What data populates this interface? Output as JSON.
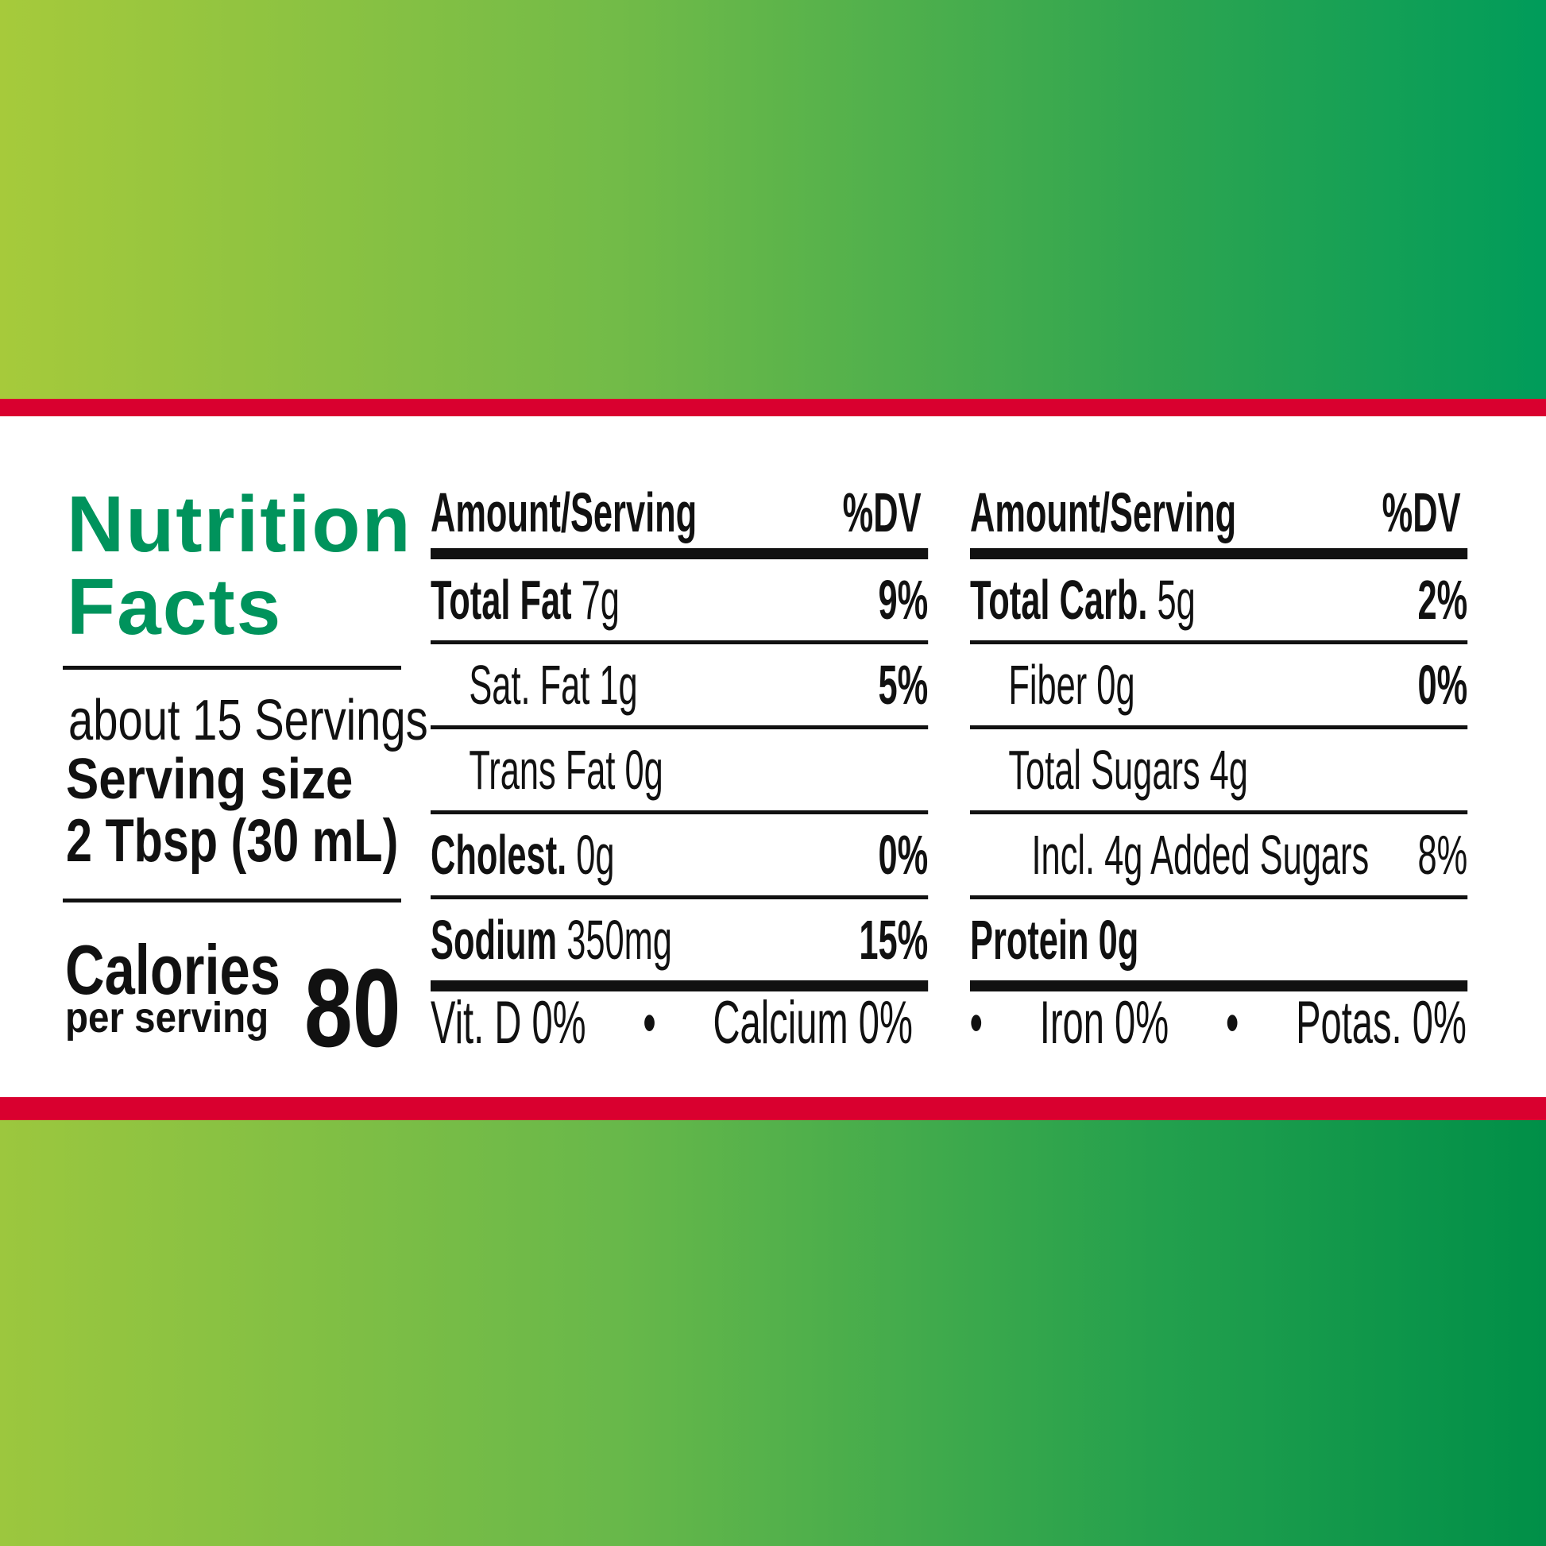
{
  "colors": {
    "brand_green": "#00935c",
    "band_red": "#d9002f"
  },
  "label": {
    "title_line1": "Nutrition",
    "title_line2": "Facts",
    "servings": "about 15 Servings",
    "serving_size_label": "Serving size",
    "serving_size_value": "2 Tbsp (30 mL)",
    "calories_label": "Calories",
    "calories_sub": "per serving",
    "calories_value": "80"
  },
  "columns": [
    {
      "header_amount": "Amount/Serving",
      "header_dv": "%DV",
      "rows": [
        {
          "name": "Total Fat",
          "amount": "7g",
          "dv": "9%",
          "bold": true
        },
        {
          "name": "Sat. Fat",
          "amount": "1g",
          "dv": "5%",
          "indent": 1
        },
        {
          "name": "Trans Fat",
          "amount": "0g",
          "dv": "",
          "indent": 1
        },
        {
          "name": "Cholest.",
          "amount": "0g",
          "dv": "0%",
          "bold": true
        },
        {
          "name": "Sodium",
          "amount": "350mg",
          "dv": "15%",
          "bold": true
        }
      ]
    },
    {
      "header_amount": "Amount/Serving",
      "header_dv": "%DV",
      "rows": [
        {
          "name": "Total Carb.",
          "amount": "5g",
          "dv": "2%",
          "bold": true
        },
        {
          "name": "Fiber",
          "amount": "0g",
          "dv": "0%",
          "indent": 1
        },
        {
          "name": "Total Sugars",
          "amount": "4g",
          "dv": "",
          "indent": 1
        },
        {
          "name": "Incl. 4g Added Sugars",
          "amount": "",
          "dv": "8%",
          "indent": 2
        },
        {
          "name": "Protein",
          "amount": "0g",
          "dv": "",
          "bold": true
        }
      ]
    }
  ],
  "footer": [
    "Vit. D 0%",
    "•",
    "Calcium 0%",
    "•",
    "Iron 0%",
    "•",
    "Potas. 0%"
  ]
}
